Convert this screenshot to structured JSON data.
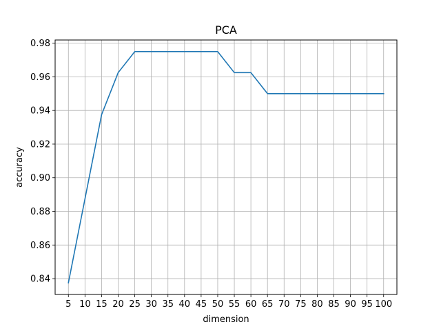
{
  "chart_data": {
    "type": "line",
    "title": "PCA",
    "xlabel": "dimension",
    "ylabel": "accuracy",
    "x": [
      5,
      10,
      15,
      20,
      25,
      30,
      35,
      40,
      45,
      50,
      55,
      60,
      65,
      70,
      75,
      80,
      85,
      90,
      95,
      100
    ],
    "series": [
      {
        "values": [
          0.8375,
          0.8875,
          0.9375,
          0.9625,
          0.975,
          0.975,
          0.975,
          0.975,
          0.975,
          0.975,
          0.9625,
          0.9625,
          0.95,
          0.95,
          0.95,
          0.95,
          0.95,
          0.95,
          0.95,
          0.95
        ],
        "color": "#1f77b4"
      }
    ],
    "xticks": [
      "5",
      "10",
      "15",
      "20",
      "25",
      "30",
      "35",
      "40",
      "45",
      "50",
      "55",
      "60",
      "65",
      "70",
      "75",
      "80",
      "85",
      "90",
      "95",
      "100"
    ],
    "yticks": [
      "0.84",
      "0.86",
      "0.88",
      "0.90",
      "0.92",
      "0.94",
      "0.96",
      "0.98"
    ],
    "xlim": [
      1,
      104
    ],
    "ylim": [
      0.8306,
      0.9819
    ],
    "grid": true
  }
}
